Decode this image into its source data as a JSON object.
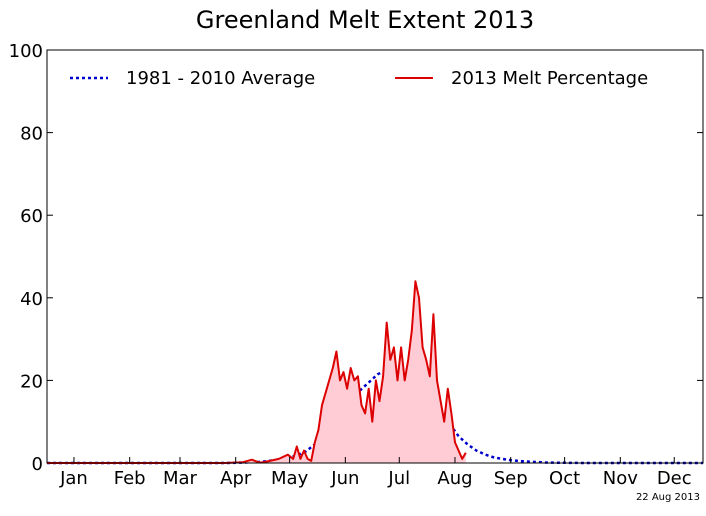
{
  "chart_data": {
    "type": "line",
    "title": "Greenland Melt Extent 2013",
    "xlabel": "",
    "ylabel": "",
    "date_stamp": "22 Aug 2013",
    "xlim": [
      1,
      366
    ],
    "ylim": [
      0,
      100
    ],
    "y_ticks": [
      0,
      20,
      40,
      60,
      80,
      100
    ],
    "x_ticks": [
      {
        "label": "Jan",
        "day": 16
      },
      {
        "label": "Feb",
        "day": 47
      },
      {
        "label": "Mar",
        "day": 75
      },
      {
        "label": "Apr",
        "day": 106
      },
      {
        "label": "May",
        "day": 136
      },
      {
        "label": "Jun",
        "day": 167
      },
      {
        "label": "Jul",
        "day": 197
      },
      {
        "label": "Aug",
        "day": 228
      },
      {
        "label": "Sep",
        "day": 259
      },
      {
        "label": "Oct",
        "day": 289
      },
      {
        "label": "Nov",
        "day": 320
      },
      {
        "label": "Dec",
        "day": 350
      }
    ],
    "grid": false,
    "legend_position": "top",
    "series": [
      {
        "name": "1981 - 2010 Average",
        "style": "dotted",
        "color": "#0000cc",
        "x": [
          1,
          100,
          110,
          120,
          130,
          140,
          145,
          150,
          155,
          160,
          165,
          170,
          175,
          180,
          185,
          190,
          195,
          200,
          205,
          210,
          215,
          220,
          225,
          230,
          235,
          240,
          245,
          250,
          260,
          270,
          280,
          300,
          366
        ],
        "values": [
          0,
          0,
          0.1,
          0.3,
          0.8,
          1.8,
          2.8,
          4.5,
          7,
          10,
          13,
          15.5,
          17.5,
          19.5,
          21.5,
          22.5,
          23.2,
          23,
          22,
          19.5,
          16.5,
          13,
          9.5,
          6.5,
          4.5,
          3,
          2,
          1.3,
          0.6,
          0.3,
          0.1,
          0,
          0
        ]
      },
      {
        "name": "2013 Melt Percentage",
        "style": "solid",
        "color": "#dd0000",
        "fill": "#ffccd5",
        "x": [
          1,
          100,
          110,
          115,
          118,
          120,
          125,
          130,
          135,
          138,
          140,
          142,
          144,
          146,
          148,
          150,
          152,
          154,
          156,
          158,
          160,
          162,
          164,
          166,
          168,
          170,
          172,
          174,
          176,
          178,
          180,
          182,
          184,
          186,
          188,
          190,
          192,
          194,
          196,
          198,
          200,
          202,
          204,
          206,
          208,
          210,
          212,
          214,
          216,
          218,
          220,
          222,
          224,
          226,
          228,
          230,
          232,
          234
        ],
        "values": [
          0,
          0,
          0.2,
          0.8,
          0.3,
          0.1,
          0.5,
          1,
          2,
          1,
          4,
          1,
          3,
          1,
          0.5,
          5,
          8,
          14,
          17,
          20,
          23,
          27,
          20,
          22,
          18,
          23,
          20,
          21,
          14,
          12,
          18,
          10,
          20,
          15,
          21,
          34,
          25,
          28,
          20,
          28,
          20,
          25,
          32,
          44,
          40,
          28,
          25,
          21,
          36,
          20,
          15,
          10,
          18,
          12,
          5,
          3,
          1,
          2.5
        ]
      }
    ]
  }
}
